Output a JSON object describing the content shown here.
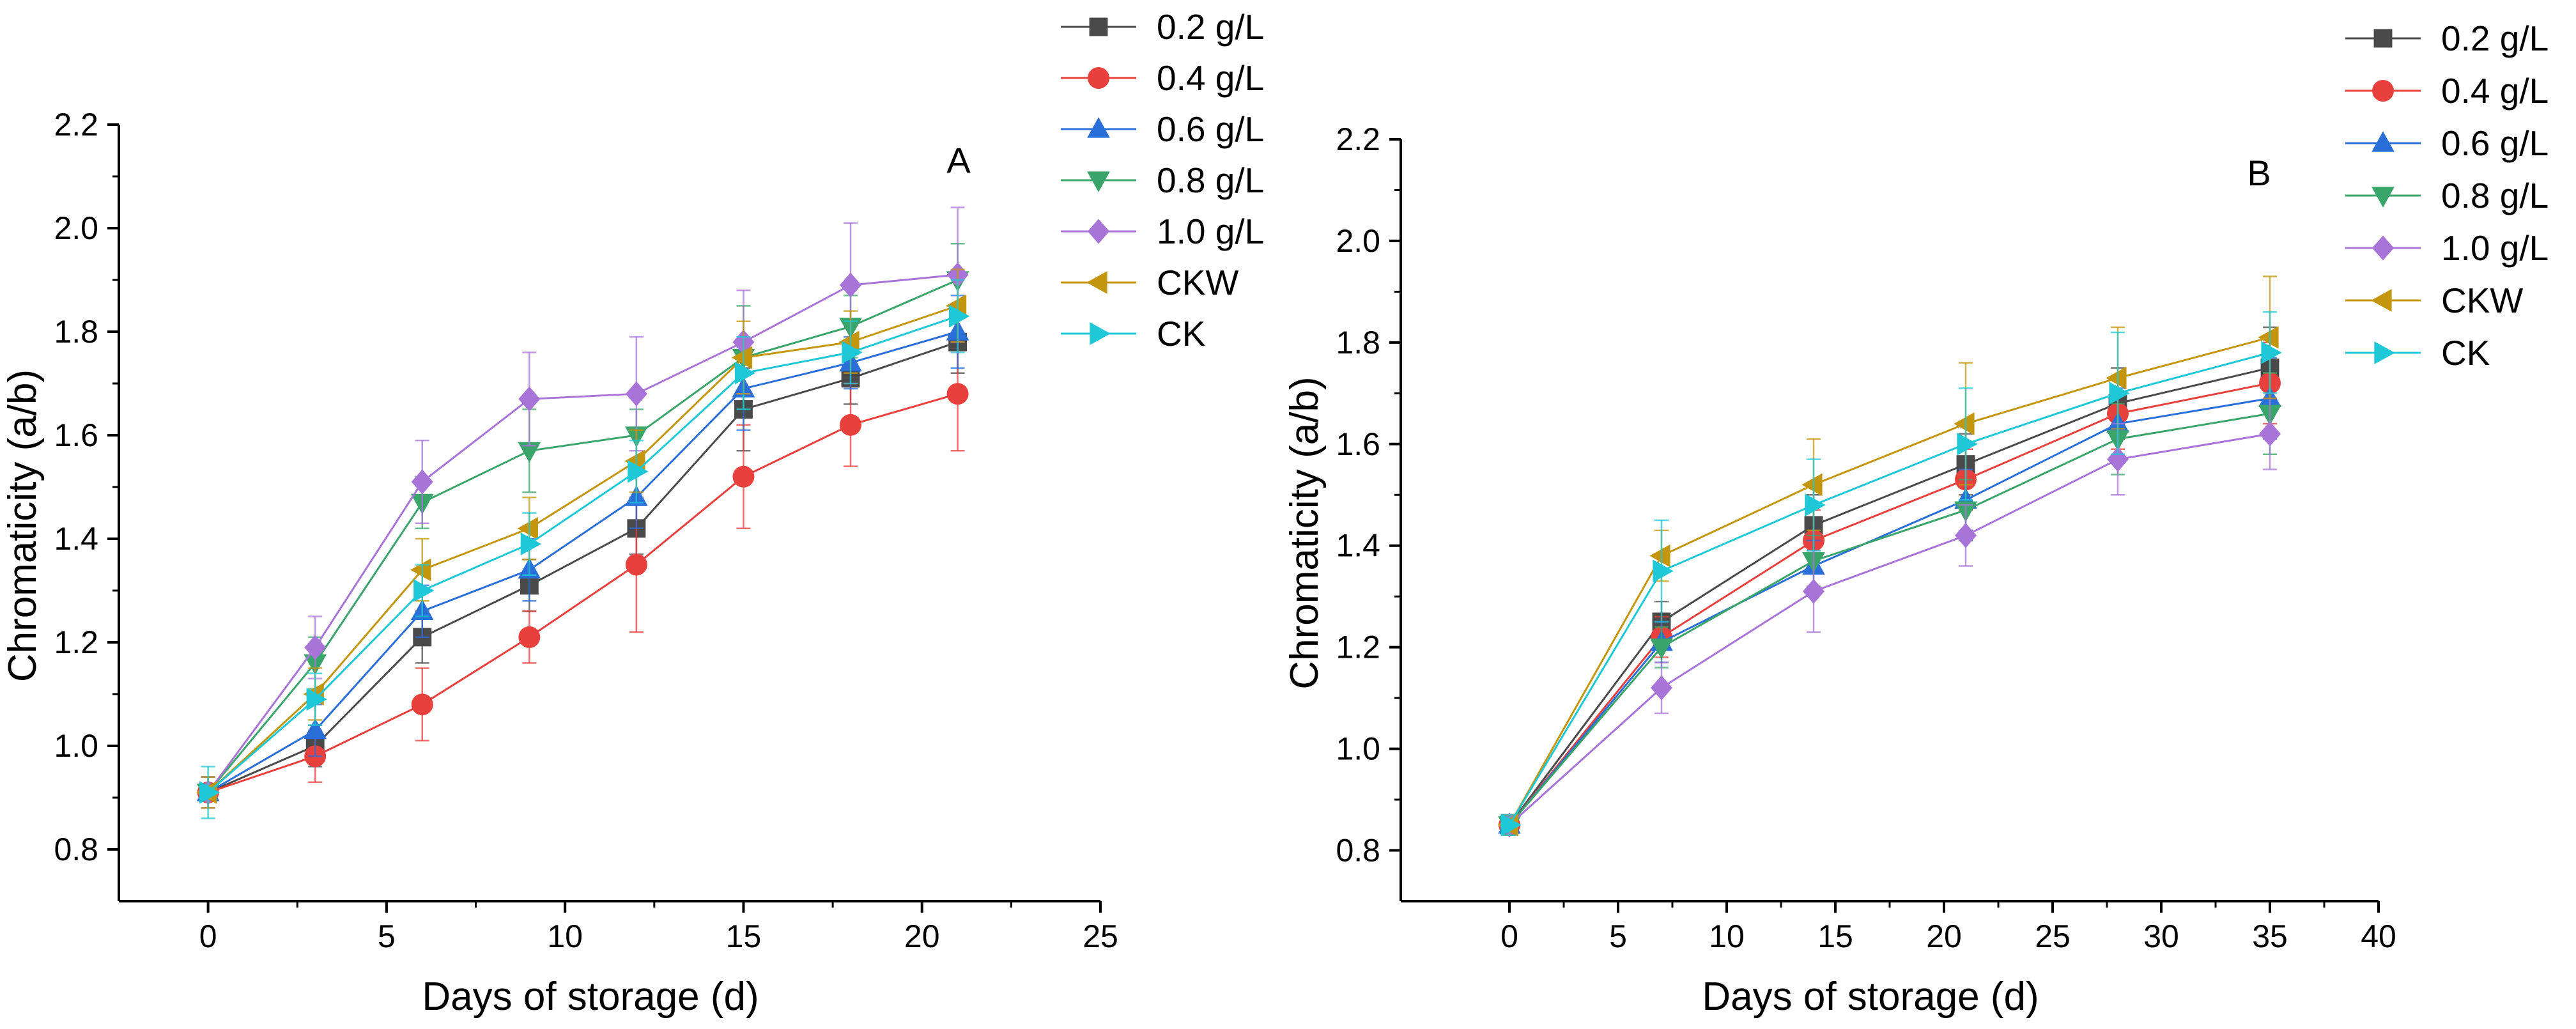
{
  "chart_data": [
    {
      "type": "line",
      "panel_label": "A",
      "xlabel": "Days of storage (d)",
      "ylabel": "Chromaticity (a/b)",
      "xlim": [
        -2.5,
        25
      ],
      "ylim": [
        0.7,
        2.2
      ],
      "xticks": [
        0,
        5,
        10,
        15,
        20,
        25
      ],
      "yticks": [
        0.8,
        1.0,
        1.2,
        1.4,
        1.6,
        1.8,
        2.0,
        2.2
      ],
      "x": [
        0,
        3,
        6,
        9,
        12,
        15,
        18,
        21
      ],
      "series": [
        {
          "name": "0.2 g/L",
          "color": "#4a4a4a",
          "marker": "square",
          "values": [
            0.91,
            1.0,
            1.21,
            1.31,
            1.42,
            1.65,
            1.71,
            1.78
          ],
          "errors": [
            0.03,
            0.04,
            0.05,
            0.05,
            0.05,
            0.08,
            0.05,
            0.06
          ]
        },
        {
          "name": "0.4 g/L",
          "color": "#e8403c",
          "marker": "circle",
          "values": [
            0.91,
            0.98,
            1.08,
            1.21,
            1.35,
            1.52,
            1.62,
            1.68
          ],
          "errors": [
            0.03,
            0.05,
            0.07,
            0.05,
            0.13,
            0.1,
            0.08,
            0.11
          ]
        },
        {
          "name": "0.6 g/L",
          "color": "#2a6fd8",
          "marker": "triangle-up",
          "values": [
            0.91,
            1.03,
            1.26,
            1.34,
            1.48,
            1.69,
            1.74,
            1.8
          ],
          "errors": [
            0.03,
            0.05,
            0.05,
            0.06,
            0.06,
            0.08,
            0.05,
            0.07
          ]
        },
        {
          "name": "0.8 g/L",
          "color": "#3aa56a",
          "marker": "triangle-down",
          "values": [
            0.91,
            1.16,
            1.47,
            1.57,
            1.6,
            1.75,
            1.81,
            1.9
          ],
          "errors": [
            0.03,
            0.05,
            0.05,
            0.08,
            0.05,
            0.1,
            0.06,
            0.07
          ]
        },
        {
          "name": "1.0 g/L",
          "color": "#a974d8",
          "marker": "diamond",
          "values": [
            0.91,
            1.19,
            1.51,
            1.67,
            1.68,
            1.78,
            1.89,
            1.91
          ],
          "errors": [
            0.03,
            0.06,
            0.08,
            0.09,
            0.11,
            0.1,
            0.12,
            0.13
          ]
        },
        {
          "name": "CKW",
          "color": "#c4960e",
          "marker": "triangle-left",
          "values": [
            0.91,
            1.1,
            1.34,
            1.42,
            1.55,
            1.75,
            1.78,
            1.85
          ],
          "errors": [
            0.03,
            0.05,
            0.06,
            0.06,
            0.06,
            0.07,
            0.06,
            0.07
          ]
        },
        {
          "name": "CK",
          "color": "#1fc8d6",
          "marker": "triangle-right",
          "values": [
            0.91,
            1.09,
            1.3,
            1.39,
            1.53,
            1.72,
            1.76,
            1.83
          ],
          "errors": [
            0.05,
            0.05,
            0.05,
            0.06,
            0.06,
            0.07,
            0.06,
            0.07
          ]
        }
      ]
    },
    {
      "type": "line",
      "panel_label": "B",
      "xlabel": "Days of storage (d)",
      "ylabel": "Chromaticity (a/b)",
      "xlim": [
        -5,
        40
      ],
      "ylim": [
        0.7,
        2.2
      ],
      "xticks": [
        0,
        5,
        10,
        15,
        20,
        25,
        30,
        35,
        40
      ],
      "yticks": [
        0.8,
        1.0,
        1.2,
        1.4,
        1.6,
        1.8,
        2.0,
        2.2
      ],
      "x": [
        0,
        7,
        14,
        21,
        28,
        35
      ],
      "series": [
        {
          "name": "0.2 g/L",
          "color": "#4a4a4a",
          "marker": "square",
          "values": [
            0.85,
            1.25,
            1.44,
            1.56,
            1.68,
            1.75
          ],
          "errors": [
            0.02,
            0.04,
            0.06,
            0.06,
            0.07,
            0.08
          ]
        },
        {
          "name": "0.4 g/L",
          "color": "#e8403c",
          "marker": "circle",
          "values": [
            0.85,
            1.22,
            1.41,
            1.53,
            1.66,
            1.72
          ],
          "errors": [
            0.02,
            0.04,
            0.06,
            0.06,
            0.07,
            0.08
          ]
        },
        {
          "name": "0.6 g/L",
          "color": "#2a6fd8",
          "marker": "triangle-up",
          "values": [
            0.85,
            1.21,
            1.36,
            1.49,
            1.64,
            1.69
          ],
          "errors": [
            0.02,
            0.04,
            0.05,
            0.06,
            0.07,
            0.08
          ]
        },
        {
          "name": "0.8 g/L",
          "color": "#3aa56a",
          "marker": "triangle-down",
          "values": [
            0.85,
            1.2,
            1.37,
            1.47,
            1.61,
            1.66
          ],
          "errors": [
            0.02,
            0.04,
            0.05,
            0.06,
            0.07,
            0.08
          ]
        },
        {
          "name": "1.0 g/L",
          "color": "#a974d8",
          "marker": "diamond",
          "values": [
            0.85,
            1.12,
            1.31,
            1.42,
            1.57,
            1.62
          ],
          "errors": [
            0.02,
            0.05,
            0.08,
            0.06,
            0.07,
            0.07
          ]
        },
        {
          "name": "CKW",
          "color": "#c4960e",
          "marker": "triangle-left",
          "values": [
            0.85,
            1.38,
            1.52,
            1.64,
            1.73,
            1.81
          ],
          "errors": [
            0.02,
            0.05,
            0.09,
            0.12,
            0.1,
            0.12
          ]
        },
        {
          "name": "CK",
          "color": "#1fc8d6",
          "marker": "triangle-right",
          "values": [
            0.85,
            1.35,
            1.48,
            1.6,
            1.7,
            1.78
          ],
          "errors": [
            0.02,
            0.1,
            0.09,
            0.11,
            0.12,
            0.08
          ]
        }
      ]
    }
  ]
}
